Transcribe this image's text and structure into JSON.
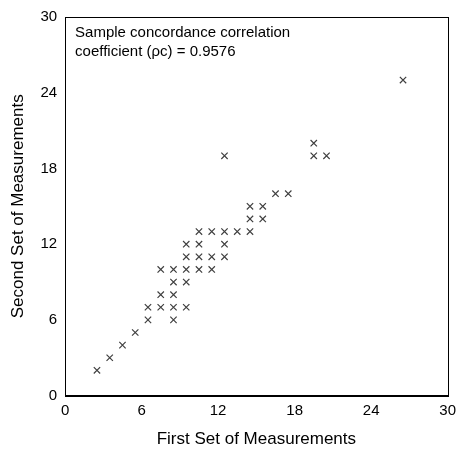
{
  "chart_data": {
    "type": "scatter",
    "x_label": "First Set of Measurements",
    "y_label": "Second Set of Measurements",
    "annotation": [
      "Sample concordance correlation",
      "coefficient (ρc) = 0.9576"
    ],
    "x": [
      2.5,
      3.5,
      4.5,
      5.5,
      6.5,
      6.5,
      7.5,
      7.5,
      7.5,
      8.5,
      8.5,
      8.5,
      8.5,
      8.5,
      9.5,
      9.5,
      9.5,
      9.5,
      9.5,
      10.5,
      10.5,
      10.5,
      10.5,
      11.5,
      11.5,
      11.5,
      12.5,
      12.5,
      12.5,
      12.5,
      13.5,
      14.5,
      14.5,
      14.5,
      15.5,
      15.5,
      16.5,
      17.5,
      19.5,
      19.5,
      20.5,
      26.5
    ],
    "values": [
      2,
      3,
      4,
      5,
      6,
      7,
      7,
      8,
      10,
      6,
      7,
      8,
      9,
      10,
      7,
      9,
      10,
      11,
      12,
      10,
      11,
      12,
      13,
      10,
      11,
      13,
      11,
      12,
      13,
      19,
      13,
      13,
      14,
      15,
      14,
      15,
      16,
      16,
      19,
      20,
      19,
      25
    ],
    "color": "#404040",
    "marker": "x",
    "xlim": [
      0,
      30
    ],
    "ylim": [
      0,
      30
    ],
    "xticks": [
      0,
      6,
      12,
      18,
      24,
      30
    ],
    "yticks": [
      0,
      6,
      12,
      18,
      24,
      30
    ],
    "grid": false
  }
}
